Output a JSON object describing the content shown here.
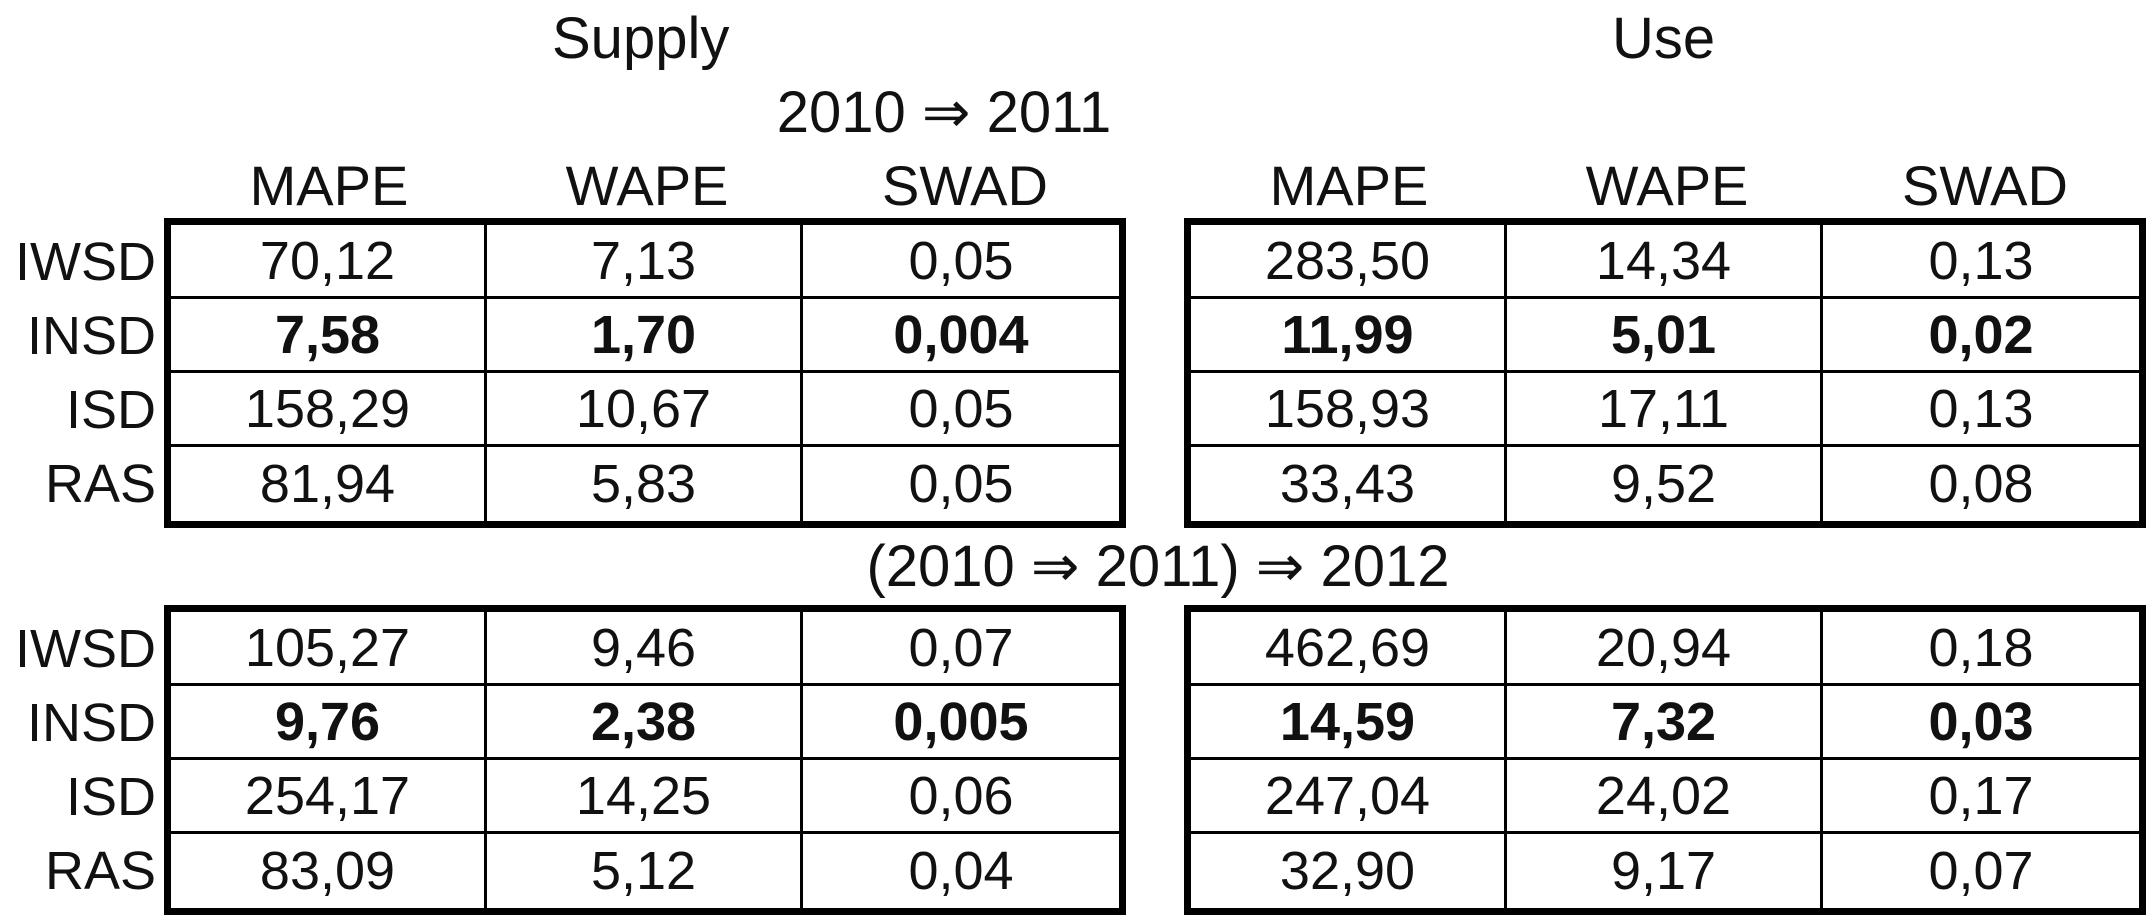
{
  "headers": {
    "supply": "Supply",
    "use": "Use"
  },
  "columns": [
    "MAPE",
    "WAPE",
    "SWAD"
  ],
  "rows": [
    "IWSD",
    "INSD",
    "ISD",
    "RAS"
  ],
  "blocks": [
    {
      "title": "2010 ⇒ 2011",
      "supply": [
        [
          "70,12",
          "7,13",
          "0,05"
        ],
        [
          "7,58",
          "1,70",
          "0,004"
        ],
        [
          "158,29",
          "10,67",
          "0,05"
        ],
        [
          "81,94",
          "5,83",
          "0,05"
        ]
      ],
      "use": [
        [
          "283,50",
          "14,34",
          "0,13"
        ],
        [
          "11,99",
          "5,01",
          "0,02"
        ],
        [
          "158,93",
          "17,11",
          "0,13"
        ],
        [
          "33,43",
          "9,52",
          "0,08"
        ]
      ]
    },
    {
      "title": "(2010 ⇒ 2011) ⇒ 2012",
      "supply": [
        [
          "105,27",
          "9,46",
          "0,07"
        ],
        [
          "9,76",
          "2,38",
          "0,005"
        ],
        [
          "254,17",
          "14,25",
          "0,06"
        ],
        [
          "83,09",
          "5,12",
          "0,04"
        ]
      ],
      "use": [
        [
          "462,69",
          "20,94",
          "0,18"
        ],
        [
          "14,59",
          "7,32",
          "0,03"
        ],
        [
          "247,04",
          "24,02",
          "0,17"
        ],
        [
          "32,90",
          "9,17",
          "0,07"
        ]
      ]
    }
  ],
  "highlighted_row": "INSD"
}
